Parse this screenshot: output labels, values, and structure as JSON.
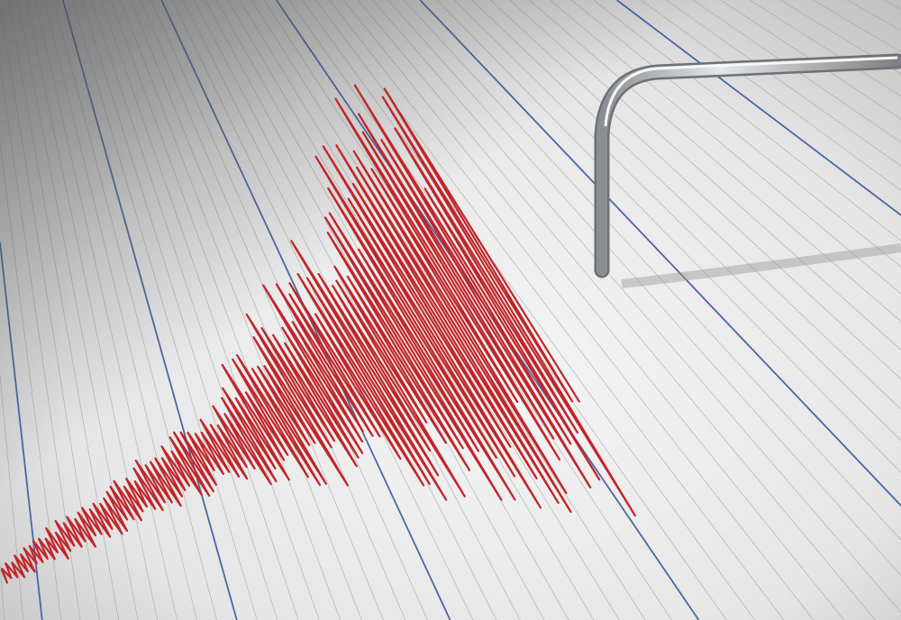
{
  "colors": {
    "paper": "#ececec",
    "grid_minor": "#9a9a9a",
    "grid_major": "#3a5a9a",
    "trace": "#c0262a",
    "stylus": "#b8bcc0"
  },
  "icons": [
    "seismograph-paper",
    "seismogram-trace",
    "stylus-needle"
  ]
}
